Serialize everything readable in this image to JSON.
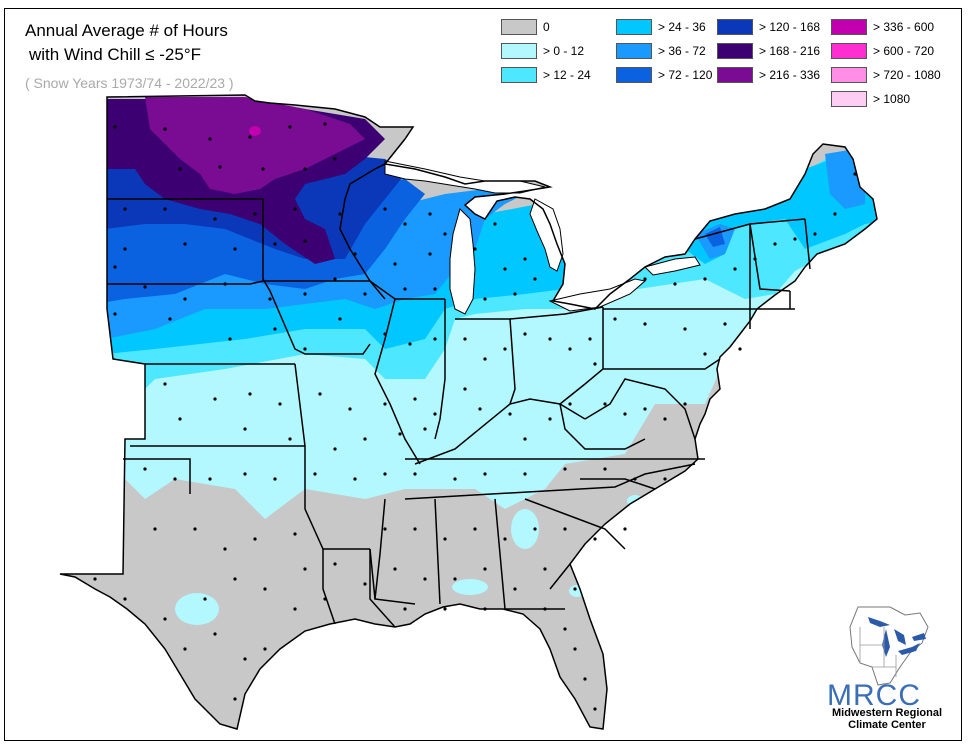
{
  "title": {
    "line1": "Annual Average # of Hours",
    "line2": "with Wind Chill ≤ -25°F",
    "subtitle": "( Snow Years 1973/74 - 2022/23 )"
  },
  "legend": [
    {
      "label": "0",
      "color": "#c8c8c8"
    },
    {
      "label": "> 0 - 12",
      "color": "#b3f7ff"
    },
    {
      "label": "> 12 - 24",
      "color": "#4de8ff"
    },
    {
      "label": "> 24 - 36",
      "color": "#00c7ff"
    },
    {
      "label": "> 36 - 72",
      "color": "#1a99ff"
    },
    {
      "label": "> 72 - 120",
      "color": "#0a62e0"
    },
    {
      "label": "> 120 - 168",
      "color": "#0a38b8"
    },
    {
      "label": "> 168 - 216",
      "color": "#3d0072"
    },
    {
      "label": "> 216 - 336",
      "color": "#7a0c94"
    },
    {
      "label": "> 336 - 600",
      "color": "#c200b0"
    },
    {
      "label": "> 600 - 720",
      "color": "#ff2ed1"
    },
    {
      "label": "> 720 - 1080",
      "color": "#ff8ee6"
    },
    {
      "label": "> 1080",
      "color": "#ffcdf4"
    }
  ],
  "logo": {
    "acronym": "MRCC",
    "name_line1": "Midwestern Regional",
    "name_line2": "Climate Center",
    "icon": "great-lakes-map-icon",
    "acronym_color": "#3a6fb8",
    "lakes_color": "#2a5aa8"
  },
  "colors": {
    "border": "#000000",
    "station_dot": "#000000"
  }
}
